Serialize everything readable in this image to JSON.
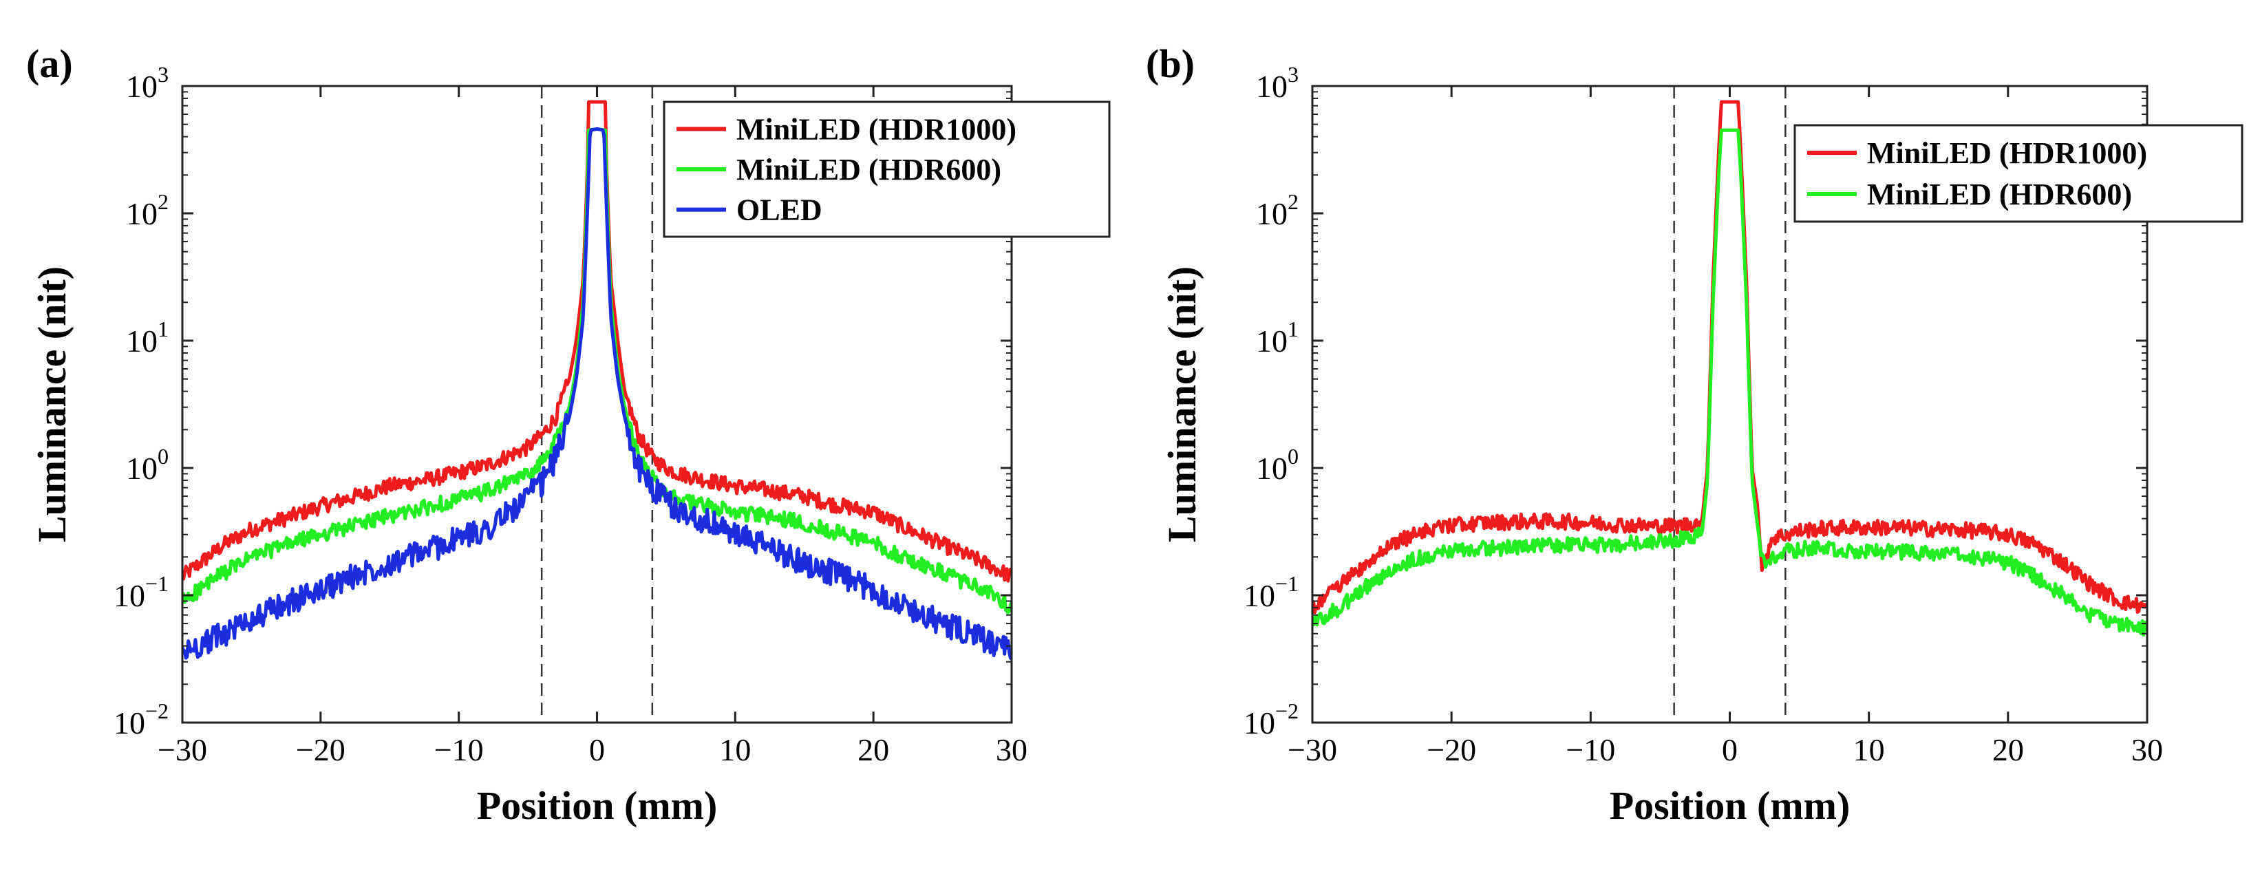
{
  "chart_data": [
    {
      "panel_label": "(a)",
      "type": "line",
      "xlabel": "Position (mm)",
      "ylabel": "Luminance (nit)",
      "yscale": "log",
      "xlim": [
        -30,
        30
      ],
      "ylim": [
        0.01,
        1000
      ],
      "x_ticks": [
        "−30",
        "−20",
        "−10",
        "0",
        "10",
        "20",
        "30"
      ],
      "y_ticks": [
        {
          "base": "10",
          "exp": "−2"
        },
        {
          "base": "10",
          "exp": "−1"
        },
        {
          "base": "10",
          "exp": "0"
        },
        {
          "base": "10",
          "exp": "1"
        },
        {
          "base": "10",
          "exp": "2"
        },
        {
          "base": "10",
          "exp": "3"
        }
      ],
      "vlines": [
        -4,
        4
      ],
      "legend_position": "top-right",
      "series": [
        {
          "name": "MiniLED (HDR1000)",
          "color": "#ee1c1c",
          "x": [
            -30,
            -27,
            -25,
            -22,
            -20,
            -17,
            -15,
            -12,
            -10,
            -8,
            -6,
            -5,
            -4,
            -3,
            -2,
            -1.5,
            -1,
            -0.7,
            -0.6,
            0,
            0.6,
            0.7,
            1,
            1.5,
            2,
            3,
            4,
            5,
            6,
            8,
            10,
            12,
            15,
            17,
            20,
            22,
            25,
            28,
            30
          ],
          "y": [
            0.14,
            0.25,
            0.33,
            0.42,
            0.5,
            0.62,
            0.72,
            0.82,
            0.92,
            1.05,
            1.3,
            1.45,
            1.8,
            2.5,
            5,
            10,
            30,
            200,
            750,
            750,
            750,
            200,
            30,
            10,
            4,
            1.8,
            1.2,
            1.0,
            0.9,
            0.8,
            0.72,
            0.68,
            0.6,
            0.52,
            0.45,
            0.35,
            0.25,
            0.18,
            0.14
          ]
        },
        {
          "name": "MiniLED (HDR600)",
          "color": "#22ee22",
          "x": [
            -30,
            -27,
            -25,
            -22,
            -20,
            -17,
            -15,
            -12,
            -10,
            -8,
            -6,
            -5,
            -4,
            -3,
            -2,
            -1.5,
            -1,
            -0.7,
            -0.6,
            0,
            0.6,
            0.7,
            1,
            1.5,
            2,
            3,
            4,
            5,
            6,
            8,
            10,
            12,
            15,
            17,
            20,
            22,
            25,
            28,
            30
          ],
          "y": [
            0.09,
            0.15,
            0.2,
            0.26,
            0.3,
            0.37,
            0.42,
            0.5,
            0.57,
            0.65,
            0.8,
            0.9,
            1.1,
            1.6,
            3,
            6,
            20,
            150,
            450,
            460,
            450,
            150,
            20,
            6,
            3,
            1.2,
            0.85,
            0.65,
            0.55,
            0.5,
            0.45,
            0.42,
            0.37,
            0.32,
            0.26,
            0.2,
            0.15,
            0.11,
            0.08
          ]
        },
        {
          "name": "OLED",
          "color": "#1a2ee0",
          "x": [
            -30,
            -27,
            -25,
            -22,
            -20,
            -17,
            -15,
            -12,
            -10,
            -8,
            -6,
            -5,
            -4,
            -3,
            -2,
            -1.5,
            -1,
            -0.7,
            -0.5,
            0,
            0.5,
            0.7,
            1,
            1.5,
            2,
            3,
            4,
            5,
            6,
            8,
            10,
            12,
            15,
            17,
            20,
            22,
            25,
            28,
            30
          ],
          "y": [
            0.035,
            0.05,
            0.065,
            0.09,
            0.11,
            0.15,
            0.18,
            0.23,
            0.28,
            0.33,
            0.48,
            0.6,
            0.75,
            1.2,
            2.5,
            5,
            15,
            100,
            450,
            460,
            450,
            100,
            15,
            5,
            2.5,
            1.0,
            0.7,
            0.55,
            0.45,
            0.38,
            0.3,
            0.25,
            0.18,
            0.15,
            0.11,
            0.085,
            0.06,
            0.045,
            0.035
          ]
        }
      ],
      "legend": [
        "MiniLED (HDR1000)",
        "MiniLED (HDR600)",
        "OLED"
      ]
    },
    {
      "panel_label": "(b)",
      "type": "line",
      "xlabel": "Position (mm)",
      "ylabel": "Luminance (nit)",
      "yscale": "log",
      "xlim": [
        -30,
        30
      ],
      "ylim": [
        0.01,
        1000
      ],
      "x_ticks": [
        "−30",
        "−20",
        "−10",
        "0",
        "10",
        "20",
        "30"
      ],
      "y_ticks": [
        {
          "base": "10",
          "exp": "−2"
        },
        {
          "base": "10",
          "exp": "−1"
        },
        {
          "base": "10",
          "exp": "0"
        },
        {
          "base": "10",
          "exp": "1"
        },
        {
          "base": "10",
          "exp": "2"
        },
        {
          "base": "10",
          "exp": "3"
        }
      ],
      "vlines": [
        -4,
        4
      ],
      "legend_position": "top-right",
      "series": [
        {
          "name": "MiniLED (HDR1000)",
          "color": "#ee1c1c",
          "x": [
            -30,
            -28,
            -26,
            -24,
            -22,
            -20,
            -18,
            -15,
            -12,
            -10,
            -8,
            -6,
            -4,
            -3,
            -2,
            -1.6,
            -1.2,
            -0.8,
            -0.6,
            0,
            0.6,
            0.8,
            1.2,
            1.6,
            2,
            2.3,
            2.6,
            3,
            4,
            5,
            6,
            8,
            10,
            12,
            15,
            18,
            20,
            22,
            24,
            26,
            28,
            30
          ],
          "y": [
            0.08,
            0.12,
            0.18,
            0.26,
            0.32,
            0.35,
            0.37,
            0.38,
            0.38,
            0.37,
            0.36,
            0.35,
            0.35,
            0.36,
            0.38,
            1.0,
            30,
            300,
            750,
            750,
            750,
            300,
            30,
            1.0,
            0.5,
            0.15,
            0.2,
            0.28,
            0.3,
            0.32,
            0.33,
            0.34,
            0.34,
            0.34,
            0.33,
            0.32,
            0.3,
            0.25,
            0.18,
            0.12,
            0.09,
            0.08
          ]
        },
        {
          "name": "MiniLED (HDR600)",
          "color": "#22ee22",
          "x": [
            -30,
            -28,
            -26,
            -24,
            -22,
            -20,
            -18,
            -15,
            -12,
            -10,
            -8,
            -6,
            -4,
            -3,
            -2,
            -1.6,
            -1.2,
            -0.8,
            -0.6,
            0,
            0.6,
            0.8,
            1.2,
            1.6,
            2,
            2.3,
            2.6,
            3,
            4,
            5,
            6,
            8,
            10,
            12,
            15,
            18,
            20,
            22,
            24,
            26,
            28,
            30
          ],
          "y": [
            0.06,
            0.08,
            0.12,
            0.17,
            0.2,
            0.22,
            0.23,
            0.24,
            0.25,
            0.25,
            0.25,
            0.26,
            0.27,
            0.28,
            0.3,
            0.8,
            20,
            200,
            450,
            450,
            450,
            200,
            20,
            0.8,
            0.35,
            0.2,
            0.18,
            0.2,
            0.22,
            0.23,
            0.23,
            0.23,
            0.22,
            0.22,
            0.21,
            0.2,
            0.18,
            0.14,
            0.1,
            0.07,
            0.06,
            0.055
          ]
        }
      ],
      "legend": [
        "MiniLED (HDR1000)",
        "MiniLED (HDR600)"
      ]
    }
  ]
}
